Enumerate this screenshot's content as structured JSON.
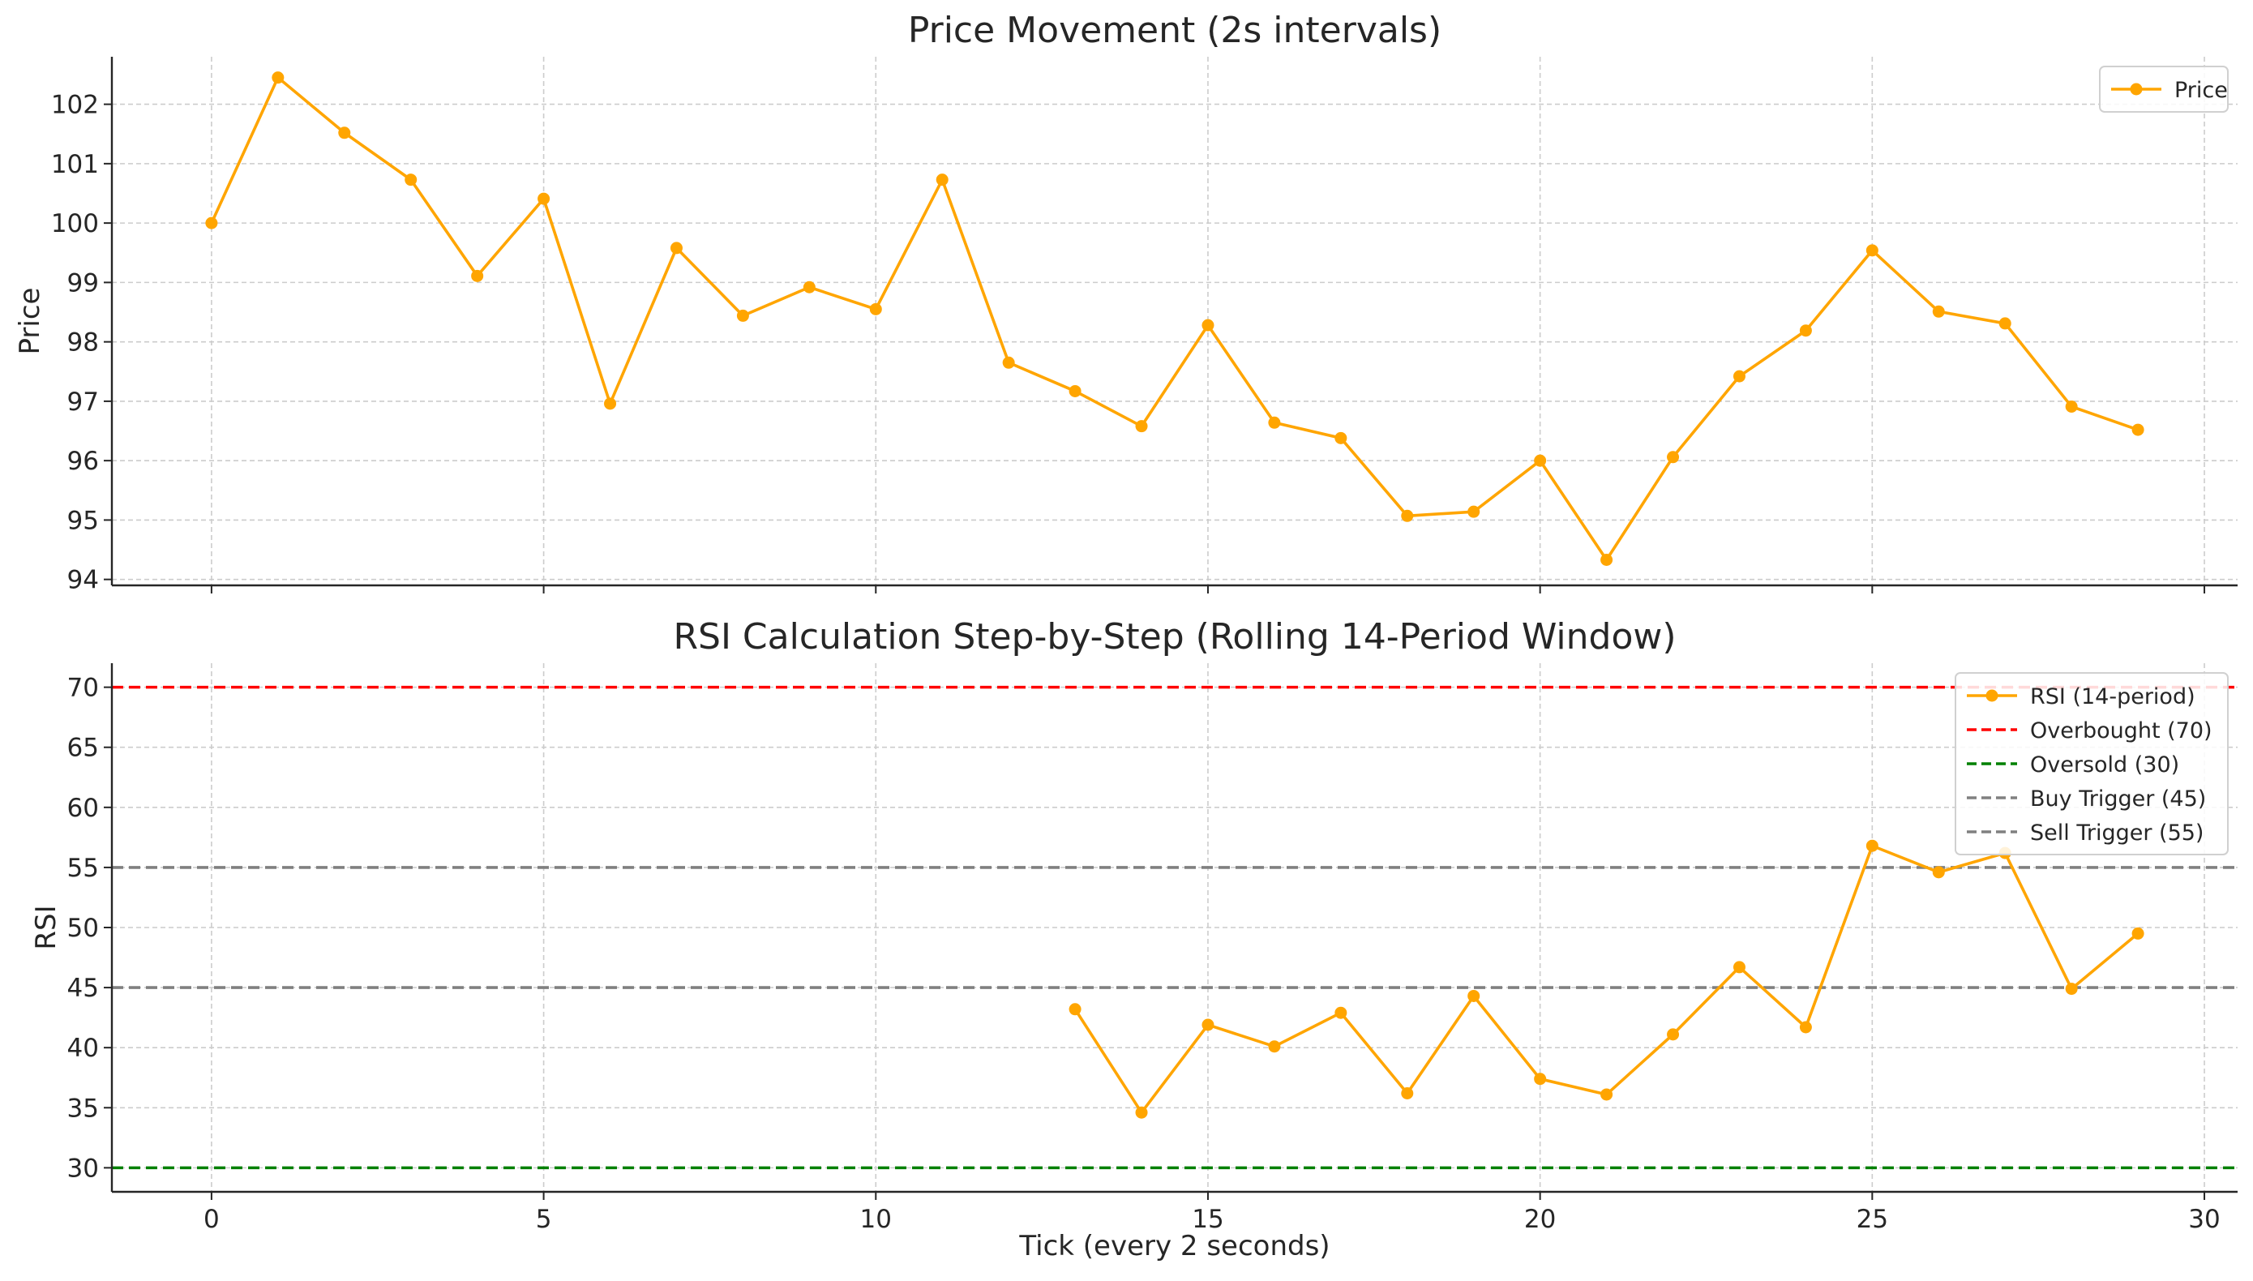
{
  "colors": {
    "price": "#FFA500",
    "rsi": "#FFA500",
    "overbought": "#FF0000",
    "oversold": "#008000",
    "trigger": "#808080",
    "grid": "#cccccc"
  },
  "chart_data": [
    {
      "type": "line",
      "title": "Price Movement (2s intervals)",
      "xlabel": "",
      "ylabel": "Price",
      "xlim": [
        -1.5,
        30.5
      ],
      "ylim": [
        93.9,
        102.8
      ],
      "xticks": [
        0,
        5,
        10,
        15,
        20,
        25,
        30
      ],
      "xtick_labels_shown": false,
      "yticks": [
        94,
        95,
        96,
        97,
        98,
        99,
        100,
        101,
        102
      ],
      "grid": true,
      "legend_position": "top-right",
      "series": [
        {
          "name": "Price",
          "x": [
            0,
            1,
            2,
            3,
            4,
            5,
            6,
            7,
            8,
            9,
            10,
            11,
            12,
            13,
            14,
            15,
            16,
            17,
            18,
            19,
            20,
            21,
            22,
            23,
            24,
            25,
            26,
            27,
            28,
            29
          ],
          "values": [
            100.0,
            102.45,
            101.52,
            100.73,
            99.11,
            100.41,
            96.96,
            99.58,
            98.44,
            98.92,
            98.55,
            100.73,
            97.65,
            97.17,
            96.58,
            98.28,
            96.64,
            96.38,
            95.07,
            95.14,
            96.0,
            94.33,
            96.06,
            97.42,
            98.19,
            99.54,
            98.51,
            98.31,
            96.91,
            96.52
          ]
        }
      ]
    },
    {
      "type": "line",
      "title": "RSI Calculation Step-by-Step (Rolling 14-Period Window)",
      "xlabel": "Tick (every 2 seconds)",
      "ylabel": "RSI",
      "xlim": [
        -1.5,
        30.5
      ],
      "ylim": [
        28,
        72
      ],
      "xticks": [
        0,
        5,
        10,
        15,
        20,
        25,
        30
      ],
      "yticks": [
        30,
        35,
        40,
        45,
        50,
        55,
        60,
        65,
        70
      ],
      "grid": true,
      "legend_position": "top-right",
      "series": [
        {
          "name": "RSI (14-period)",
          "x": [
            13,
            14,
            15,
            16,
            17,
            18,
            19,
            20,
            21,
            22,
            23,
            24,
            25,
            26,
            27,
            28,
            29
          ],
          "values": [
            43.2,
            34.6,
            41.9,
            40.1,
            42.9,
            36.2,
            44.3,
            37.4,
            36.1,
            41.1,
            46.7,
            41.7,
            56.8,
            54.6,
            56.2,
            44.9,
            49.5
          ]
        }
      ],
      "reference_lines": [
        {
          "name": "Overbought (70)",
          "y": 70,
          "color": "#FF0000"
        },
        {
          "name": "Oversold (30)",
          "y": 30,
          "color": "#008000"
        },
        {
          "name": "Buy Trigger (45)",
          "y": 45,
          "color": "#808080"
        },
        {
          "name": "Sell Trigger (55)",
          "y": 55,
          "color": "#808080"
        }
      ]
    }
  ]
}
